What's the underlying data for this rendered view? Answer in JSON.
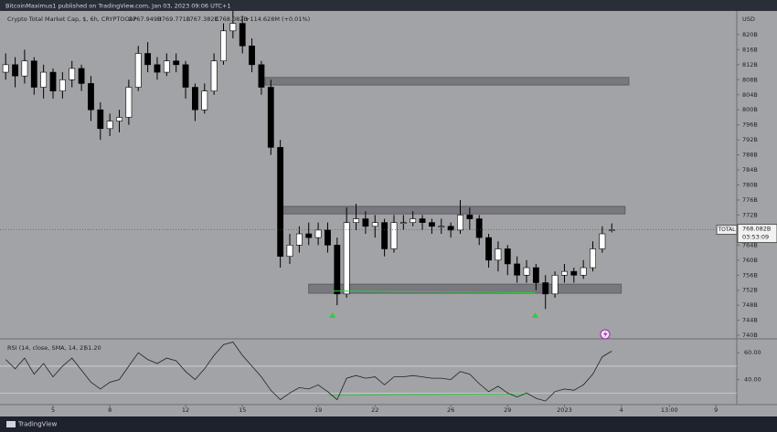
{
  "top_bar": {
    "text": "BitcoinMaximus1 published on TradingView.com, Jan 03, 2023 09:06 UTC+1"
  },
  "footer": {
    "brand": "TradingView"
  },
  "chart_data": {
    "type": "candlestick",
    "title": "Crypto Total Market Cap, $, 6h, CRYPTOCAP",
    "ohlc_labels": {
      "open": "O767.949B",
      "high": "H769.771B",
      "low": "L767.382B",
      "close": "C768.082B",
      "change": "+114.628M (+0.01%)"
    },
    "currency": "USD",
    "x": [
      2.5,
      3,
      3.5,
      4,
      4.5,
      5,
      5.5,
      6,
      6.5,
      7,
      7.5,
      8,
      8.5,
      9,
      9.5,
      10,
      10.5,
      11,
      11.5,
      12,
      12.5,
      13,
      13.5,
      14,
      14.5,
      15,
      15.5,
      16,
      16.5,
      17,
      17.5,
      18,
      18.5,
      19,
      19.5,
      20,
      20.5,
      21,
      21.5,
      22,
      22.5,
      23,
      23.5,
      24,
      24.5,
      25,
      25.5,
      26,
      26.5,
      27,
      27.5,
      28,
      28.5,
      29,
      29.5,
      30,
      30.5,
      31,
      31.5,
      32,
      32.5,
      33,
      33.5,
      34,
      34.5
    ],
    "open": [
      810,
      812,
      809,
      813,
      806,
      810,
      805,
      808,
      811,
      807,
      800,
      795,
      797,
      798,
      806,
      815,
      812,
      810,
      813,
      812,
      806,
      800,
      805,
      813,
      821,
      823,
      817,
      812,
      806,
      790,
      761,
      764,
      767,
      766,
      768,
      764,
      751,
      770,
      771,
      769,
      770,
      763,
      770,
      770,
      771,
      770,
      769,
      769,
      768,
      772,
      771,
      766,
      760,
      763,
      759,
      756,
      758,
      754,
      751,
      756,
      757,
      756,
      758,
      763,
      767.949
    ],
    "high": [
      815,
      814,
      816,
      814,
      812,
      811,
      810,
      813,
      812,
      809,
      802,
      799,
      800,
      808,
      817,
      818,
      814,
      815,
      815,
      813,
      807,
      807,
      815,
      823,
      827,
      825,
      819,
      813,
      808,
      792,
      767,
      769,
      770,
      770,
      770,
      766,
      774,
      775,
      773,
      772,
      771,
      772,
      772,
      773,
      772,
      771,
      771,
      770,
      776,
      774,
      772,
      767,
      765,
      764,
      761,
      760,
      759,
      756,
      757,
      759,
      758,
      760,
      765,
      769,
      769.771
    ],
    "low": [
      808,
      806,
      807,
      804,
      803,
      803,
      803,
      806,
      805,
      797,
      792,
      793,
      794,
      796,
      805,
      810,
      808,
      809,
      810,
      803,
      797,
      799,
      804,
      812,
      819,
      815,
      810,
      804,
      788,
      758,
      759,
      762,
      764,
      764,
      762,
      748,
      750,
      768,
      767,
      766,
      761,
      762,
      768,
      769,
      768,
      767,
      767,
      766,
      767,
      768,
      764,
      758,
      757,
      756,
      754,
      754,
      752,
      747,
      750,
      754,
      754,
      755,
      757,
      762,
      767.382
    ],
    "close": [
      812,
      809,
      813,
      806,
      810,
      805,
      808,
      811,
      807,
      800,
      795,
      797,
      798,
      806,
      815,
      812,
      810,
      813,
      812,
      806,
      800,
      805,
      813,
      821,
      823,
      817,
      812,
      806,
      790,
      761,
      764,
      767,
      766,
      768,
      764,
      751,
      770,
      771,
      769,
      770,
      763,
      770,
      770,
      771,
      770,
      769,
      769,
      768,
      772,
      771,
      766,
      760,
      763,
      759,
      756,
      758,
      754,
      751,
      756,
      757,
      756,
      758,
      763,
      767,
      768.082
    ],
    "up_color": "#ffffff",
    "down_color": "#000000",
    "xlim": [
      2.2,
      41.1
    ],
    "xticks": [
      5,
      8,
      12,
      15,
      19,
      22,
      26,
      29,
      {
        "value": 32,
        "label": "2023"
      },
      {
        "value": 35,
        "label": "4"
      },
      {
        "value": 37.54,
        "label": "13:00"
      },
      {
        "value": 40,
        "label": "9"
      }
    ],
    "ylim": [
      739.3,
      826.3
    ],
    "yticks": [
      {
        "value": 820,
        "label": "820B"
      },
      {
        "value": 816,
        "label": "816B"
      },
      {
        "value": 812,
        "label": "812B"
      },
      {
        "value": 808,
        "label": "808B"
      },
      {
        "value": 804,
        "label": "804B"
      },
      {
        "value": 800,
        "label": "800B"
      },
      {
        "value": 796,
        "label": "796B"
      },
      {
        "value": 792,
        "label": "792B"
      },
      {
        "value": 788,
        "label": "788B"
      },
      {
        "value": 784,
        "label": "784B"
      },
      {
        "value": 780,
        "label": "780B"
      },
      {
        "value": 776,
        "label": "776B"
      },
      {
        "value": 772,
        "label": "772B"
      },
      {
        "value": 764,
        "label": "764B"
      },
      {
        "value": 760,
        "label": "760B"
      },
      {
        "value": 756,
        "label": "756B"
      },
      {
        "value": 752,
        "label": "752B"
      },
      {
        "value": 748,
        "label": "748B"
      },
      {
        "value": 744,
        "label": "744B"
      },
      {
        "value": 740,
        "label": "740B"
      }
    ],
    "last_price": {
      "symbol": "TOTAL",
      "label": "768.082B",
      "countdown": "03:53:09"
    },
    "zones": [
      {
        "from": 16.2,
        "to": 35.4,
        "low": 806.6,
        "high": 808.6
      },
      {
        "from": 17.0,
        "to": 35.2,
        "low": 772.3,
        "high": 774.3
      },
      {
        "from": 18.5,
        "to": 35.0,
        "low": 751.2,
        "high": 753.6
      }
    ],
    "support": {
      "x": [
        19.75,
        30.45
      ],
      "y": [
        751.8,
        751.3
      ]
    },
    "indicator": {
      "type": "line",
      "title": "RSI (14, close, SMA, 14, 2)",
      "value_label": "61.20",
      "color": "#222222",
      "values": [
        55,
        48,
        56,
        44,
        52,
        42,
        50,
        56,
        47,
        38,
        33,
        38,
        40,
        50,
        60,
        55,
        52,
        56,
        54,
        46,
        40,
        48,
        58,
        66,
        68,
        58,
        50,
        42,
        32,
        25,
        30,
        34,
        33,
        36,
        31,
        25,
        41,
        43,
        41,
        42,
        36,
        42,
        42,
        43,
        42,
        41,
        41,
        40,
        46,
        44,
        37,
        31,
        35,
        30,
        27,
        30,
        26,
        24,
        31,
        33,
        32,
        36,
        44,
        57,
        61.2
      ],
      "ylim": [
        22,
        69
      ],
      "yticks": [
        {
          "value": 60,
          "label": "60.00"
        },
        {
          "value": 40,
          "label": "40.00"
        }
      ],
      "levels": [
        50,
        30
      ]
    }
  }
}
